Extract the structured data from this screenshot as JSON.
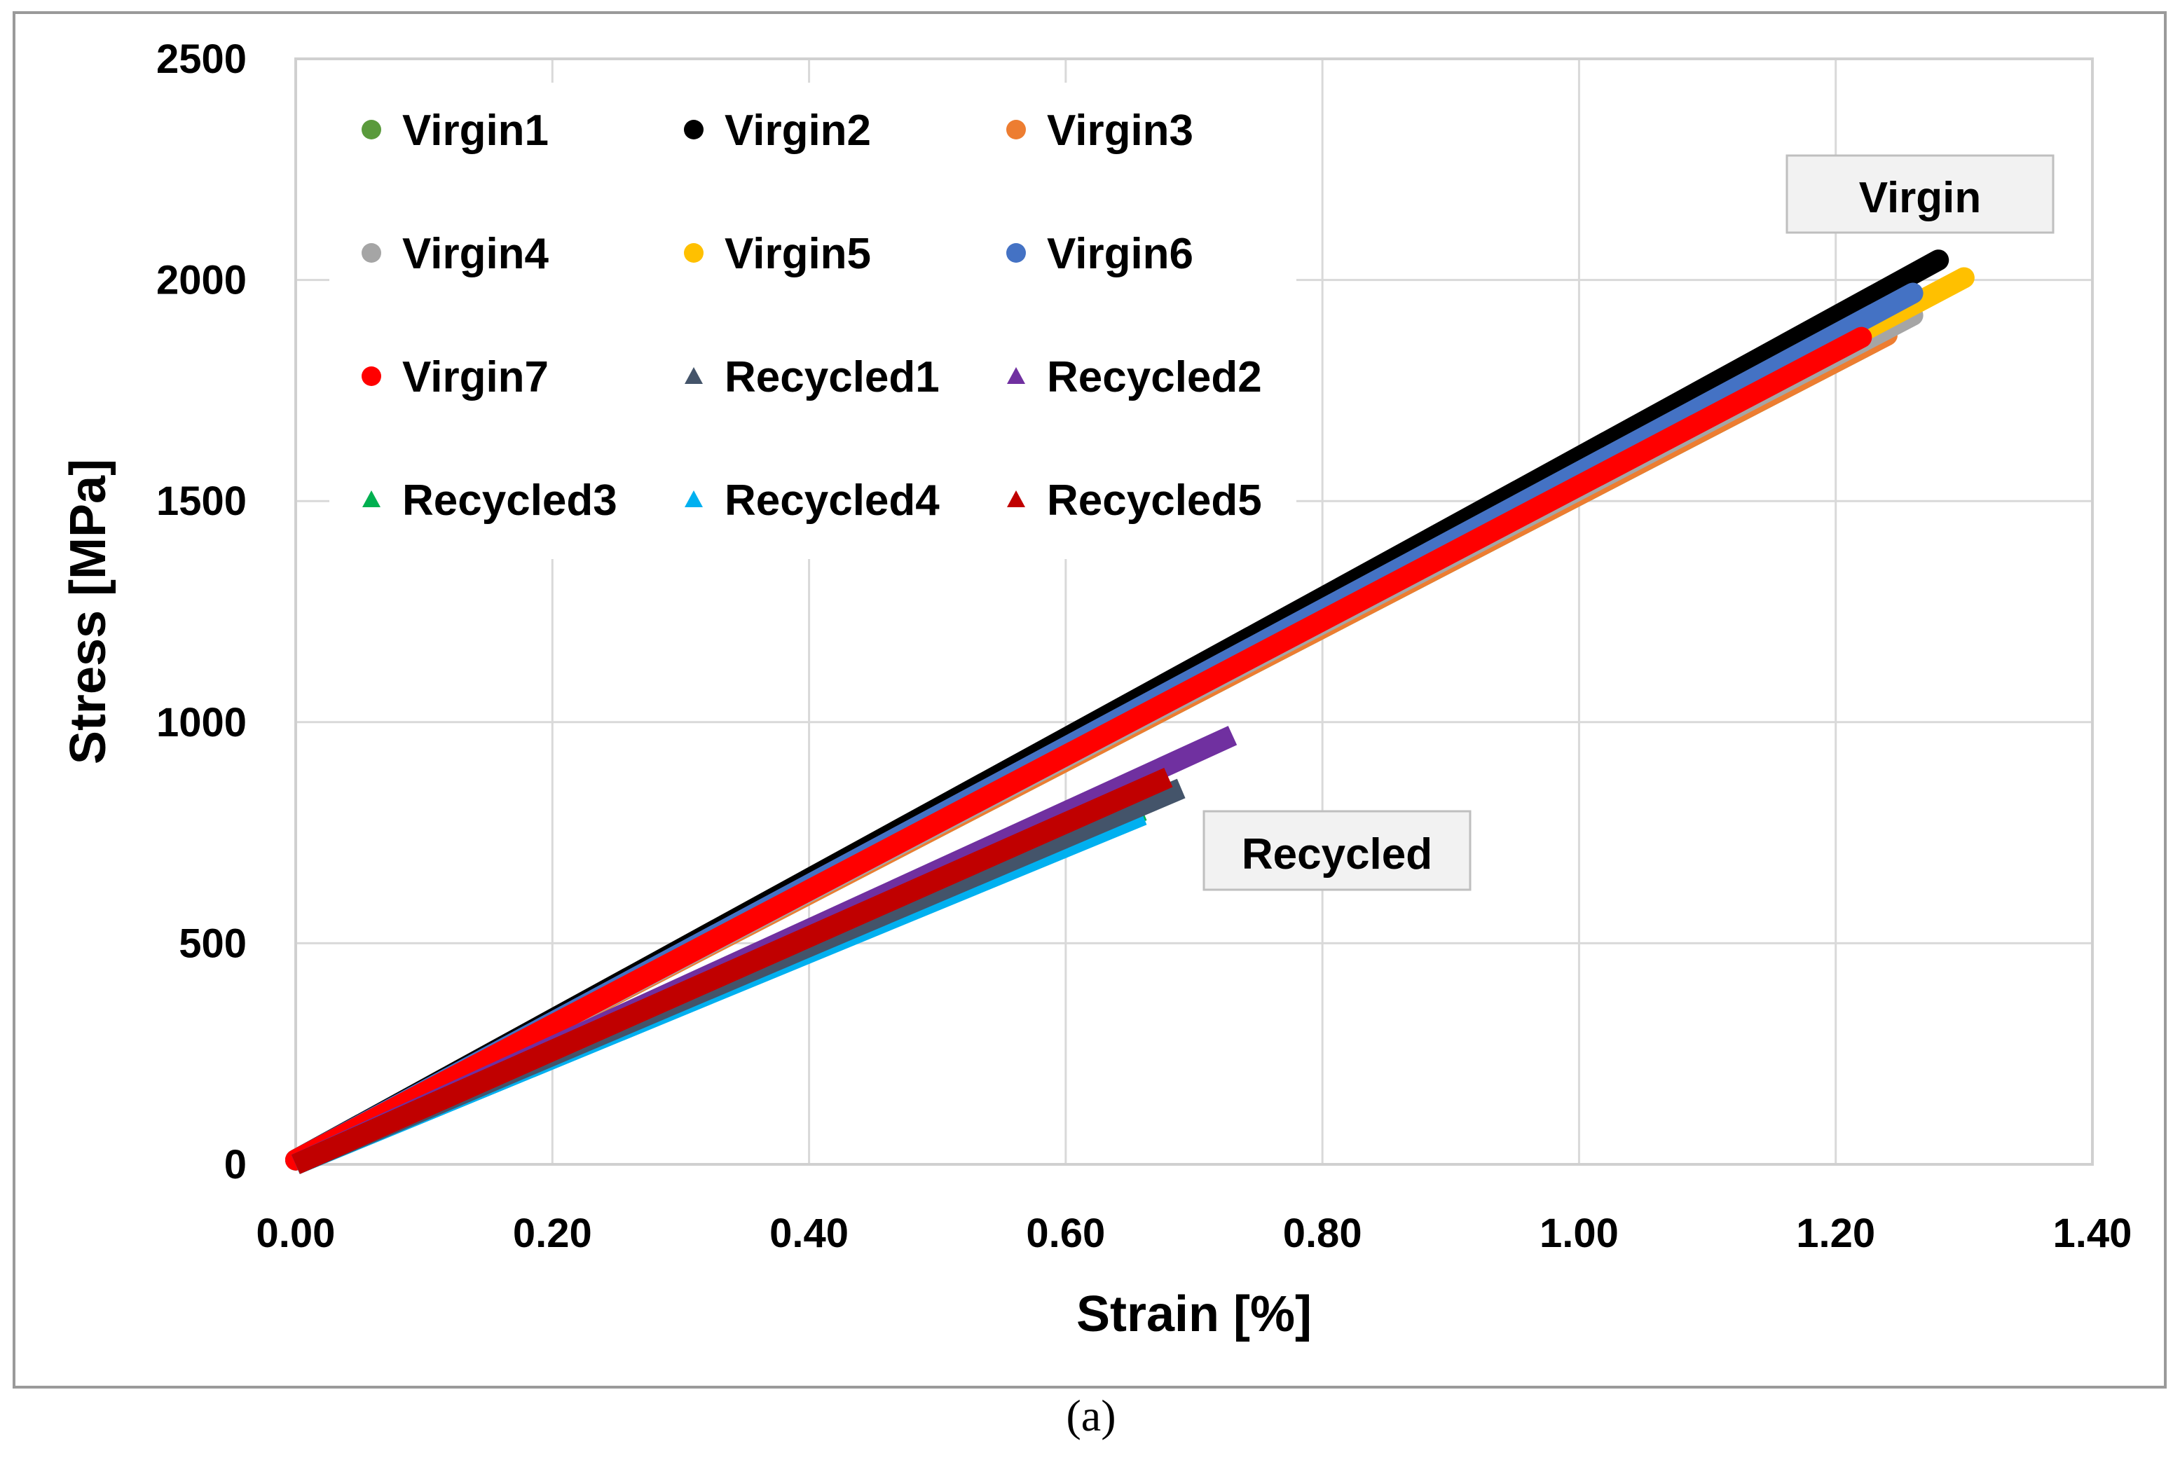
{
  "chart_data": {
    "type": "line",
    "title": "",
    "xlabel": "Strain [%]",
    "ylabel": "Stress [MPa]",
    "xlim": [
      0,
      1.4
    ],
    "ylim": [
      0,
      2500
    ],
    "grid": true,
    "x_ticks": [
      "0.00",
      "0.20",
      "0.40",
      "0.60",
      "0.80",
      "1.00",
      "1.20",
      "1.40"
    ],
    "y_ticks": [
      "0",
      "500",
      "1000",
      "1500",
      "2000",
      "2500"
    ],
    "legend_position": "top-left",
    "caption": "(a)",
    "annotations": [
      {
        "text": "Virgin"
      },
      {
        "text": "Recycled"
      }
    ],
    "series": [
      {
        "name": "Virgin1",
        "marker": "circle",
        "color": "#5a9a3c",
        "x": [
          0.0,
          1.23
        ],
        "y": [
          10,
          1860
        ]
      },
      {
        "name": "Virgin2",
        "marker": "circle",
        "color": "#000000",
        "x": [
          0.0,
          1.28
        ],
        "y": [
          10,
          2045
        ]
      },
      {
        "name": "Virgin3",
        "marker": "circle",
        "color": "#ed7d31",
        "x": [
          0.0,
          1.24
        ],
        "y": [
          10,
          1875
        ]
      },
      {
        "name": "Virgin4",
        "marker": "circle",
        "color": "#a5a5a5",
        "x": [
          0.0,
          1.26
        ],
        "y": [
          10,
          1920
        ]
      },
      {
        "name": "Virgin5",
        "marker": "circle",
        "color": "#ffc000",
        "x": [
          0.0,
          1.3
        ],
        "y": [
          10,
          2005
        ]
      },
      {
        "name": "Virgin6",
        "marker": "circle",
        "color": "#4472c4",
        "x": [
          0.0,
          1.26
        ],
        "y": [
          10,
          1970
        ]
      },
      {
        "name": "Virgin7",
        "marker": "circle",
        "color": "#ff0000",
        "x": [
          0.0,
          1.22
        ],
        "y": [
          10,
          1870
        ]
      },
      {
        "name": "Recycled1",
        "marker": "triangle",
        "color": "#44546a",
        "x": [
          0.0,
          0.69
        ],
        "y": [
          0,
          850
        ]
      },
      {
        "name": "Recycled2",
        "marker": "triangle",
        "color": "#7030a0",
        "x": [
          0.0,
          0.73
        ],
        "y": [
          0,
          970
        ]
      },
      {
        "name": "Recycled3",
        "marker": "triangle",
        "color": "#00b050",
        "x": [
          0.0,
          0.66
        ],
        "y": [
          0,
          800
        ]
      },
      {
        "name": "Recycled4",
        "marker": "triangle",
        "color": "#00b0f0",
        "x": [
          0.0,
          0.66
        ],
        "y": [
          0,
          790
        ]
      },
      {
        "name": "Recycled5",
        "marker": "triangle",
        "color": "#c00000",
        "x": [
          0.0,
          0.68
        ],
        "y": [
          0,
          875
        ]
      }
    ]
  }
}
